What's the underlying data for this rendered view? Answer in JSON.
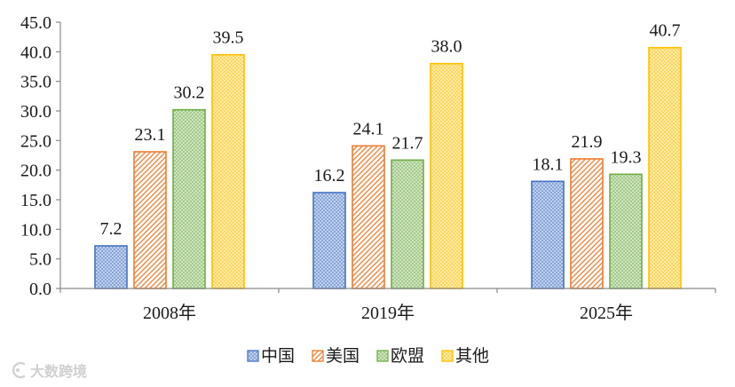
{
  "chart_data": {
    "type": "bar",
    "categories": [
      "2008年",
      "2019年",
      "2025年"
    ],
    "ylim": [
      0,
      45
    ],
    "yticks": [
      "0.0",
      "5.0",
      "10.0",
      "15.0",
      "20.0",
      "25.0",
      "30.0",
      "35.0",
      "40.0",
      "45.0"
    ],
    "grid": false,
    "legend": "bottom",
    "series": [
      {
        "name": "中国",
        "values": [
          7.2,
          16.2,
          18.1
        ],
        "labels": [
          "7.2",
          "16.2",
          "18.1"
        ],
        "color": "#4472C4",
        "fill_pattern": "dots"
      },
      {
        "name": "美国",
        "values": [
          23.1,
          24.1,
          21.9
        ],
        "labels": [
          "23.1",
          "24.1",
          "21.9"
        ],
        "color": "#ED7D31",
        "fill_pattern": "diagonal-hatch"
      },
      {
        "name": "欧盟",
        "values": [
          30.2,
          21.7,
          19.3
        ],
        "labels": [
          "30.2",
          "21.7",
          "19.3"
        ],
        "color": "#70AD47",
        "fill_pattern": "dots"
      },
      {
        "name": "其他",
        "values": [
          39.5,
          38.0,
          40.7
        ],
        "labels": [
          "39.5",
          "38.0",
          "40.7"
        ],
        "color": "#FFC000",
        "fill_pattern": "dots"
      }
    ]
  },
  "watermark": {
    "text": "大数跨境",
    "icon": "brand-logo-icon"
  }
}
